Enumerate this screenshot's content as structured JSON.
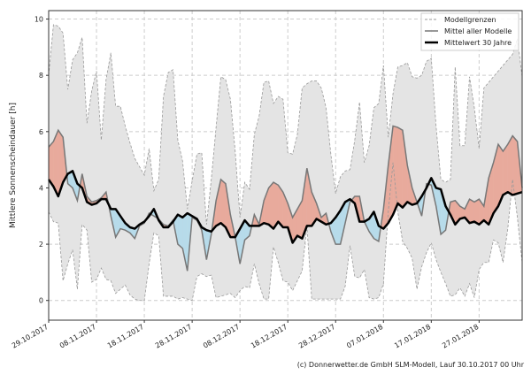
{
  "chart_data": {
    "type": "area",
    "title": "",
    "xlabel": "",
    "ylabel": "Mittlere Sonnenscheindauer [h]",
    "ylim": [
      -0.7,
      10.3
    ],
    "yticks": [
      0,
      2,
      4,
      6,
      8,
      10
    ],
    "x_start_date": "29.10.2017",
    "xtick_labels": [
      "29.10.2017",
      "08.11.2017",
      "18.11.2017",
      "28.11.2017",
      "08.12.2017",
      "18.12.2017",
      "28.12.2017",
      "07.01.2018",
      "17.01.2018",
      "27.01.2018"
    ],
    "grid": true,
    "legend_position": "top-right",
    "colors": {
      "band": "#e4e4e4",
      "band_edge": "#999999",
      "mean": "#777777",
      "climate": "#000000",
      "above": "#e8aa9c",
      "below": "#b7dbea"
    },
    "series": [
      {
        "name": "Modellgrenzen",
        "role": "upper",
        "values": [
          8.0,
          9.8,
          9.75,
          9.5,
          7.5,
          8.55,
          8.8,
          9.35,
          6.3,
          7.45,
          8.15,
          5.7,
          7.85,
          8.8,
          6.9,
          6.9,
          6.2,
          5.6,
          5.05,
          4.75,
          4.45,
          5.4,
          3.9,
          4.3,
          7.25,
          8.1,
          8.2,
          5.7,
          4.95,
          3.25,
          4.25,
          5.2,
          5.25,
          2.7,
          4.3,
          6.15,
          7.95,
          7.85,
          7.15,
          5.3,
          2.95,
          4.2,
          3.95,
          5.9,
          6.55,
          7.75,
          7.8,
          7.0,
          7.25,
          7.15,
          5.25,
          5.2,
          5.9,
          7.55,
          7.7,
          7.8,
          7.8,
          7.55,
          6.85,
          5.2,
          3.8,
          4.4,
          4.6,
          4.65,
          5.7,
          7.05,
          4.9,
          5.5,
          6.85,
          7.0,
          8.35,
          5.8,
          7.35,
          8.3,
          8.35,
          8.45,
          7.95,
          7.9,
          8.0,
          8.5,
          8.6,
          6.2,
          4.3,
          4.2,
          4.3,
          8.3,
          5.5,
          5.5,
          7.95,
          6.85,
          5.4,
          7.55,
          7.75,
          7.95,
          8.15,
          8.35,
          8.55,
          8.75,
          9.3,
          7.95
        ]
      },
      {
        "name": "Modellgrenzen",
        "role": "lower",
        "values": [
          3.15,
          2.8,
          2.75,
          0.7,
          1.3,
          1.8,
          0.4,
          2.7,
          2.5,
          0.65,
          0.75,
          1.15,
          0.75,
          0.7,
          0.25,
          0.4,
          0.55,
          0.2,
          0.05,
          0,
          0,
          1.3,
          2.4,
          2.3,
          0.15,
          0.15,
          0.15,
          0.05,
          0.1,
          0.05,
          0,
          0.85,
          0.95,
          0.85,
          0.9,
          0.1,
          0.15,
          0.2,
          0.25,
          0.1,
          0.35,
          0.5,
          0.45,
          1.3,
          0.6,
          0.05,
          0.05,
          1.9,
          1.35,
          0.7,
          0.65,
          0.35,
          0.7,
          1.05,
          2.65,
          0.05,
          0.05,
          0.05,
          0.05,
          0.05,
          0.05,
          0.05,
          0.5,
          1.95,
          0.85,
          0.8,
          1.1,
          0.1,
          0.05,
          0.1,
          0.6,
          3.15,
          4.9,
          3.15,
          2.1,
          1.85,
          1.5,
          0.4,
          1.2,
          1.7,
          2.05,
          1.45,
          1.0,
          0.6,
          0.15,
          0.2,
          0.45,
          0.15,
          0.6,
          0.1,
          1.1,
          1.35,
          1.35,
          2.15,
          2.05,
          1.35,
          2.55,
          4.3,
          2.95,
          1.35
        ]
      },
      {
        "name": "Mittel aller Modelle",
        "role": "mean",
        "values": [
          5.45,
          5.65,
          6.05,
          5.8,
          4.15,
          4.0,
          3.55,
          4.5,
          3.7,
          3.5,
          3.55,
          3.65,
          3.85,
          3.0,
          2.25,
          2.55,
          2.5,
          2.4,
          2.2,
          2.65,
          2.75,
          3.1,
          3.0,
          2.9,
          2.7,
          2.65,
          2.85,
          2.0,
          1.85,
          1.05,
          2.95,
          2.85,
          2.5,
          1.45,
          2.35,
          3.55,
          4.3,
          4.15,
          3.05,
          2.25,
          1.3,
          2.15,
          2.3,
          3.05,
          2.7,
          3.55,
          4.0,
          4.2,
          4.1,
          3.85,
          3.45,
          2.95,
          3.25,
          3.55,
          4.7,
          3.85,
          3.45,
          2.95,
          3.1,
          2.45,
          2.0,
          2.0,
          2.75,
          3.5,
          3.7,
          3.7,
          2.8,
          2.45,
          2.2,
          2.1,
          3.25,
          4.8,
          6.2,
          6.15,
          6.05,
          4.8,
          4.0,
          3.5,
          3.0,
          4.15,
          4.1,
          3.35,
          2.35,
          2.5,
          3.5,
          3.55,
          3.35,
          3.25,
          3.6,
          3.5,
          3.6,
          3.35,
          4.35,
          4.9,
          5.55,
          5.3,
          5.55,
          5.85,
          5.65,
          4.0
        ]
      },
      {
        "name": "Mittelwert 30 Jahre",
        "role": "climate",
        "values": [
          4.3,
          4.05,
          3.7,
          4.2,
          4.5,
          4.6,
          4.15,
          4.0,
          3.5,
          3.4,
          3.45,
          3.6,
          3.6,
          3.25,
          3.25,
          3.0,
          2.75,
          2.6,
          2.55,
          2.7,
          2.8,
          3.0,
          3.25,
          2.85,
          2.6,
          2.6,
          2.8,
          3.05,
          2.95,
          3.1,
          3.0,
          2.9,
          2.6,
          2.5,
          2.45,
          2.65,
          2.75,
          2.6,
          2.25,
          2.25,
          2.55,
          2.85,
          2.65,
          2.65,
          2.65,
          2.75,
          2.7,
          2.55,
          2.8,
          2.6,
          2.6,
          2.05,
          2.3,
          2.2,
          2.65,
          2.65,
          2.9,
          2.8,
          2.7,
          2.75,
          2.95,
          3.2,
          3.5,
          3.6,
          3.45,
          2.8,
          2.8,
          2.9,
          3.15,
          2.65,
          2.55,
          2.75,
          3.05,
          3.45,
          3.3,
          3.5,
          3.4,
          3.45,
          3.7,
          4.0,
          4.35,
          4.0,
          3.95,
          3.35,
          3.05,
          2.7,
          2.9,
          2.95,
          2.75,
          2.8,
          2.7,
          2.85,
          2.7,
          3.1,
          3.35,
          3.75,
          3.85,
          3.75,
          3.8,
          3.85
        ]
      }
    ],
    "legend": [
      "Modellgrenzen",
      "Mittel aller Modelle",
      "Mittelwert 30 Jahre"
    ]
  },
  "footer": "(c) Donnerwetter.de GmbH SLM-Modell, Lauf 30.10.2017 00 Uhr"
}
